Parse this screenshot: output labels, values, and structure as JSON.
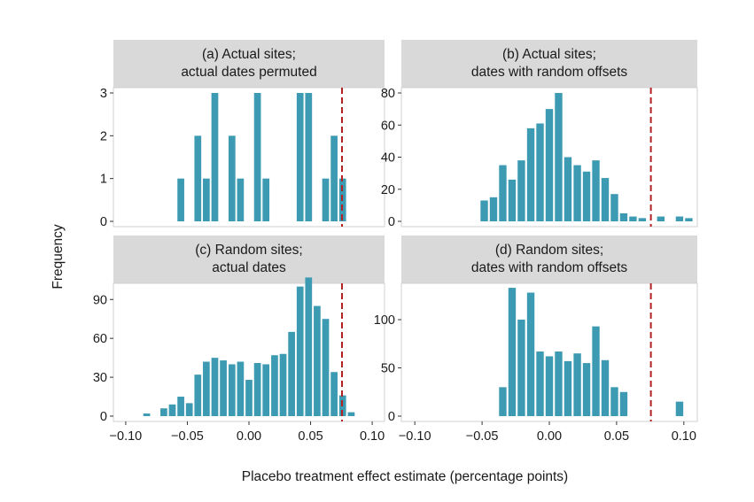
{
  "colors": {
    "bar": "#3C9AB2",
    "reference_line": "#B22222",
    "strip": "#D9D9D9",
    "panel_border": "#D0D0D0",
    "tick": "#333333"
  },
  "xlabel": "Placebo treatment effect estimate (percentage points)",
  "ylabel": "Frequency",
  "chart_data": [
    {
      "type": "bar",
      "panel": "a",
      "title_lines": [
        "(a) Actual sites;",
        "actual dates permuted"
      ],
      "xlim": [
        -0.11,
        0.11
      ],
      "ylim": [
        0,
        3
      ],
      "xticks": [],
      "yticks": [
        0,
        1,
        2,
        3
      ],
      "bin_width": 0.00553,
      "reference_line_x": 0.0755,
      "x": [
        -0.0553,
        -0.0415,
        -0.0346,
        -0.0277,
        -0.0138,
        -0.0069,
        0.0069,
        0.0138,
        0.0415,
        0.0484,
        0.0622,
        0.0691,
        0.076
      ],
      "values": [
        1,
        2,
        1,
        3,
        2,
        1,
        3,
        1,
        3,
        3,
        1,
        2,
        1
      ]
    },
    {
      "type": "bar",
      "panel": "b",
      "title_lines": [
        "(b) Actual sites;",
        "dates with random offsets"
      ],
      "xlim": [
        -0.11,
        0.11
      ],
      "ylim": [
        0,
        80
      ],
      "xticks": [],
      "yticks": [
        0,
        20,
        40,
        60,
        80
      ],
      "bin_width": 0.00553,
      "reference_line_x": 0.0755,
      "x": [
        -0.0484,
        -0.0415,
        -0.0346,
        -0.0277,
        -0.0208,
        -0.0138,
        -0.0069,
        0.0,
        0.0069,
        0.0138,
        0.0208,
        0.0277,
        0.0346,
        0.0415,
        0.0484,
        0.0553,
        0.0622,
        0.0691,
        0.0829,
        0.0968,
        0.1037
      ],
      "values": [
        13,
        15,
        35,
        26,
        38,
        58,
        61,
        70,
        80,
        40,
        35,
        31,
        38,
        27,
        17,
        5,
        3,
        2,
        3,
        3,
        2
      ]
    },
    {
      "type": "bar",
      "panel": "c",
      "title_lines": [
        "(c) Random sites;",
        "actual dates"
      ],
      "xlim": [
        -0.11,
        0.11
      ],
      "ylim": [
        0,
        110
      ],
      "xticks": [
        -0.1,
        -0.05,
        0.0,
        0.05,
        0.1
      ],
      "xtick_labels": [
        "−0.10",
        "−0.05",
        "0.00",
        "0.05",
        "0.10"
      ],
      "yticks": [
        0,
        30,
        60,
        90
      ],
      "bin_width": 0.00553,
      "reference_line_x": 0.0755,
      "x": [
        -0.083,
        -0.0691,
        -0.0622,
        -0.0553,
        -0.0484,
        -0.0415,
        -0.0346,
        -0.0277,
        -0.0208,
        -0.0138,
        -0.0069,
        0.0,
        0.0069,
        0.0138,
        0.0208,
        0.0277,
        0.0346,
        0.0415,
        0.0484,
        0.0553,
        0.0622,
        0.0691,
        0.076,
        0.083
      ],
      "values": [
        2,
        6,
        9,
        15,
        10,
        32,
        42,
        45,
        43,
        40,
        42,
        28,
        41,
        40,
        47,
        48,
        65,
        100,
        107,
        85,
        75,
        34,
        16,
        3
      ]
    },
    {
      "type": "bar",
      "panel": "d",
      "title_lines": [
        "(d) Random sites;",
        "dates with random offsets"
      ],
      "xlim": [
        -0.11,
        0.11
      ],
      "ylim": [
        0,
        145
      ],
      "xticks": [
        -0.1,
        -0.05,
        0.0,
        0.05,
        0.1
      ],
      "xtick_labels": [
        "−0.10",
        "−0.05",
        "0.00",
        "0.05",
        "0.10"
      ],
      "yticks": [
        0,
        50,
        100
      ],
      "bin_width": 0.00553,
      "reference_line_x": 0.0755,
      "x": [
        -0.0346,
        -0.0277,
        -0.0208,
        -0.0138,
        -0.0069,
        0.0,
        0.0069,
        0.0138,
        0.0208,
        0.0277,
        0.0346,
        0.0415,
        0.0484,
        0.0553,
        0.0968
      ],
      "values": [
        30,
        133,
        100,
        128,
        67,
        62,
        67,
        57,
        65,
        55,
        93,
        58,
        30,
        25,
        15
      ]
    }
  ]
}
